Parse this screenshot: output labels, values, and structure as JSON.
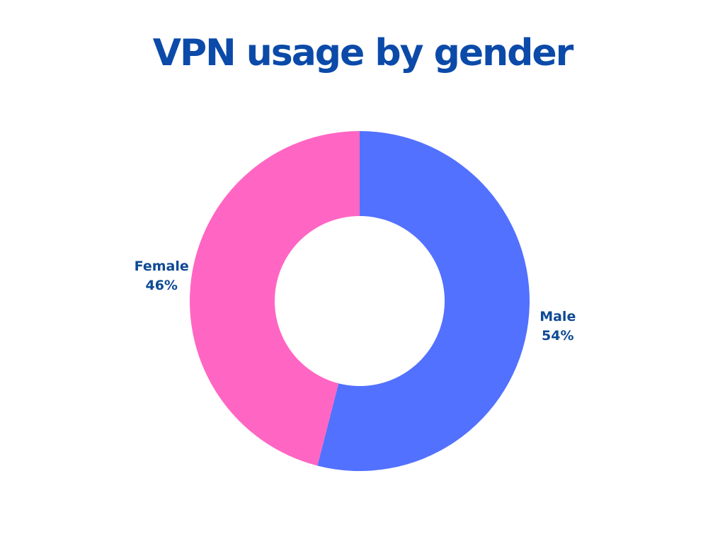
{
  "chart_data": {
    "type": "donut",
    "title": "VPN usage by gender",
    "categories": [
      "Male",
      "Female"
    ],
    "values": [
      54,
      46
    ],
    "value_labels": [
      "54%",
      "46%"
    ],
    "colors": [
      "#5271ff",
      "#ff66c4"
    ]
  }
}
